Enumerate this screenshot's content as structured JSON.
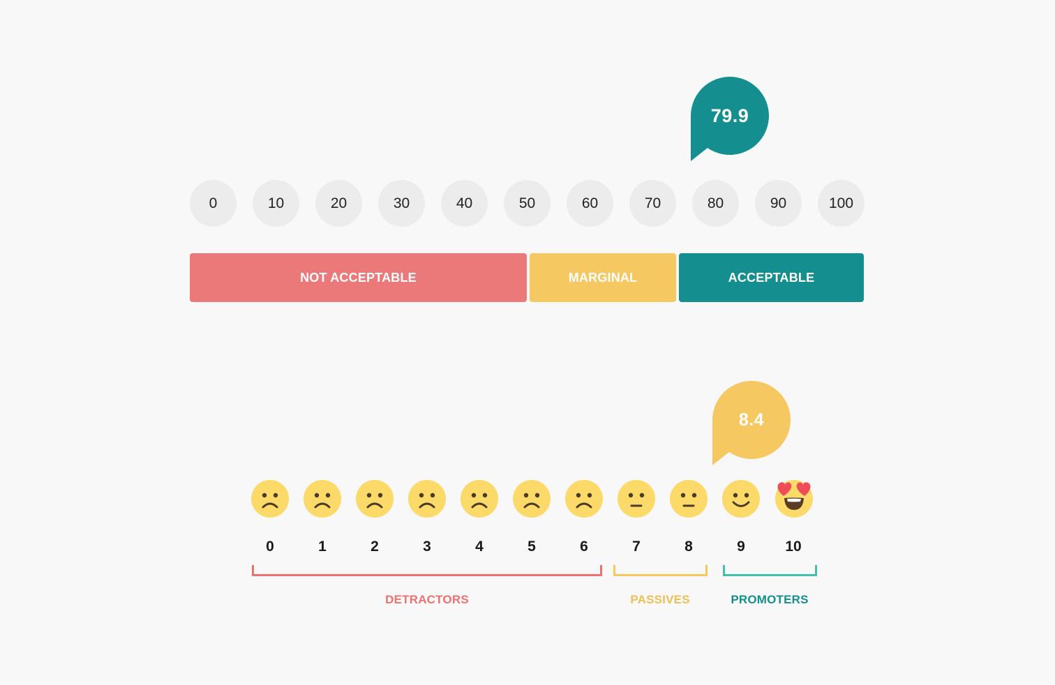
{
  "sus": {
    "score": "79.9",
    "ticks": [
      "0",
      "10",
      "20",
      "30",
      "40",
      "50",
      "60",
      "70",
      "80",
      "90",
      "100"
    ],
    "bands": [
      {
        "label": "NOT ACCEPTABLE",
        "color": "#ec7979"
      },
      {
        "label": "MARGINAL",
        "color": "#f6c862"
      },
      {
        "label": "ACCEPTABLE",
        "color": "#148e8e"
      }
    ],
    "bubble_color": "#148e8e"
  },
  "nps": {
    "score": "8.4",
    "bubble_color": "#f6c862",
    "scores": [
      {
        "label": "0",
        "face": "sad-face-icon"
      },
      {
        "label": "1",
        "face": "sad-face-icon"
      },
      {
        "label": "2",
        "face": "sad-face-icon"
      },
      {
        "label": "3",
        "face": "sad-face-icon"
      },
      {
        "label": "4",
        "face": "sad-face-icon"
      },
      {
        "label": "5",
        "face": "sad-face-icon"
      },
      {
        "label": "6",
        "face": "sad-face-icon"
      },
      {
        "label": "7",
        "face": "neutral-face-icon"
      },
      {
        "label": "8",
        "face": "neutral-face-icon"
      },
      {
        "label": "9",
        "face": "smiling-face-icon"
      },
      {
        "label": "10",
        "face": "heart-eyes-face-icon"
      }
    ],
    "groups": [
      {
        "label": "DETRACTORS",
        "color": "#ec7272"
      },
      {
        "label": "PASSIVES",
        "color": "#ecc056"
      },
      {
        "label": "PROMOTERS",
        "color": "#148e8e",
        "bracket_color": "#3fc2a8"
      }
    ]
  }
}
